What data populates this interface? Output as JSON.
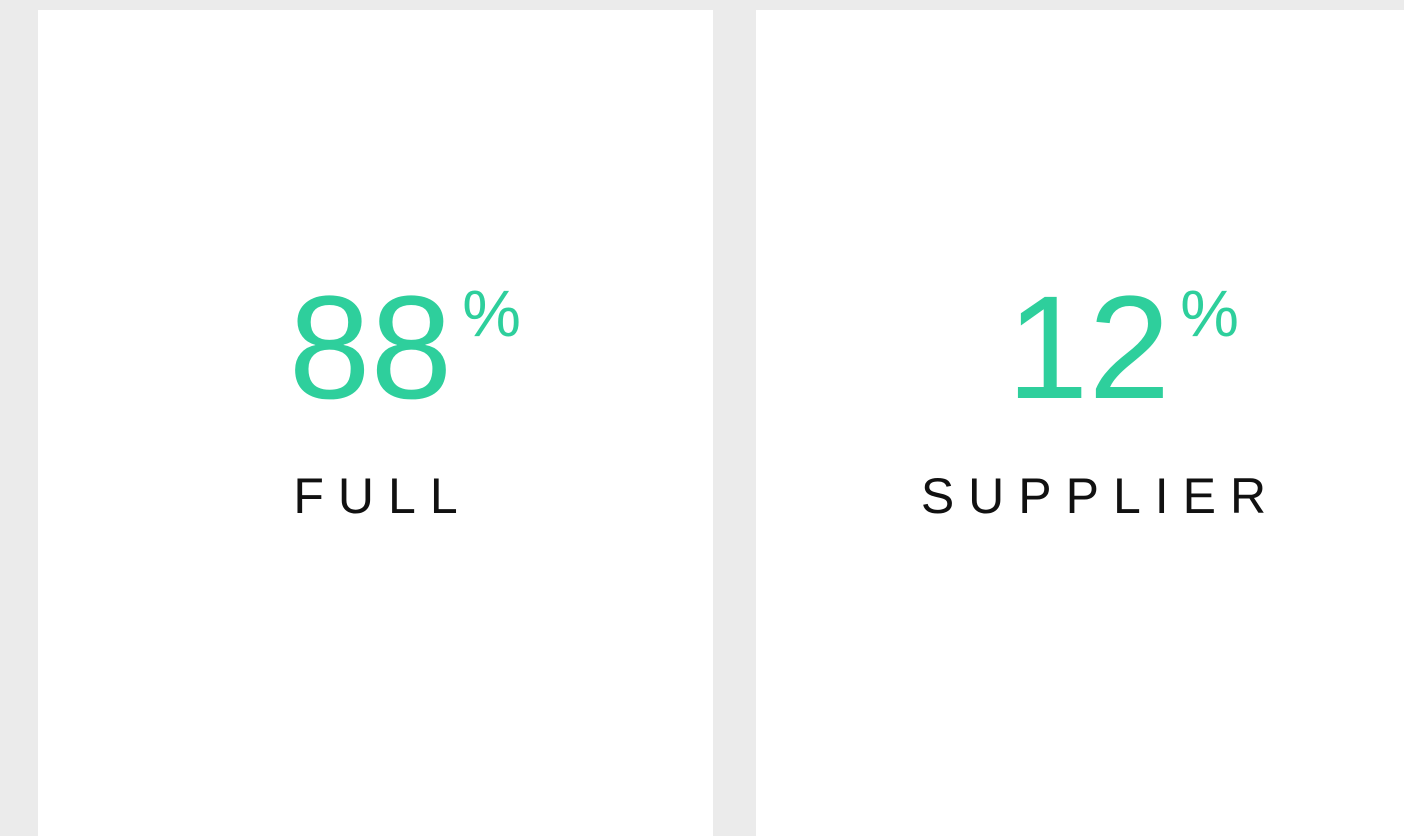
{
  "cards": [
    {
      "value": 88,
      "unit": "%",
      "label": "FULL"
    },
    {
      "value": 12,
      "unit": "%",
      "label": "SUPPLIER"
    }
  ]
}
